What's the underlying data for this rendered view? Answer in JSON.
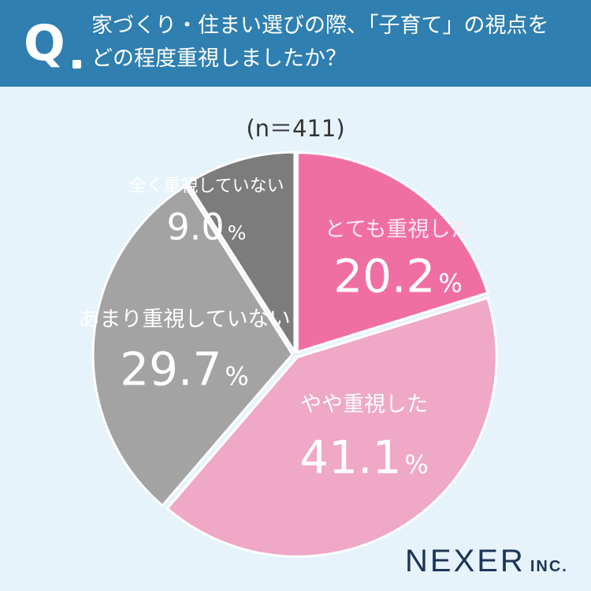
{
  "header": {
    "q_mark": "Q",
    "question_lines": [
      "家づくり・住まい選びの際、「子育て」の視点を",
      "どの程度重視しましたか？"
    ]
  },
  "sample_size": "(n＝411)",
  "brand": {
    "name": "NEXER",
    "suffix": "INC."
  },
  "chart_data": {
    "type": "pie",
    "sample": "(n＝411)",
    "slices": [
      {
        "label": "とても重視した",
        "value": 20.2,
        "value_text": "20.2",
        "color": "#f06fa3",
        "label_color": "#fde6ef"
      },
      {
        "label": "やや重視した",
        "value": 41.1,
        "value_text": "41.1",
        "color": "#efa8c5",
        "label_color": "#ffffff"
      },
      {
        "label": "あまり重視していない",
        "value": 29.7,
        "value_text": "29.7",
        "color": "#a3a3a3",
        "label_color": "#ffffff"
      },
      {
        "label": "全く重視していない",
        "value": 9.0,
        "value_text": "9.0",
        "color": "#7c7c7c",
        "label_color": "#ffffff"
      }
    ],
    "percent_symbol": "%",
    "start_angle": "12 o'clock",
    "direction": "clockwise",
    "legend": "none (labels inside slices)"
  }
}
